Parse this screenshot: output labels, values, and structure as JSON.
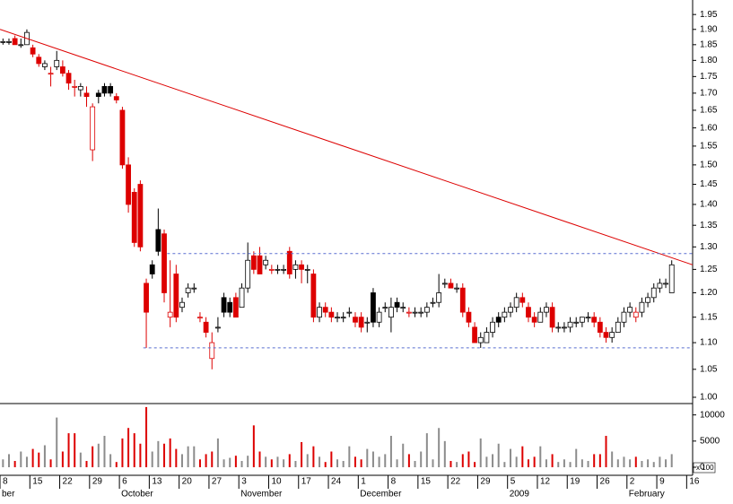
{
  "chart_data": {
    "type": "candlestick",
    "categories": [
      "8",
      null,
      null,
      null,
      null,
      "15",
      null,
      null,
      null,
      null,
      "22",
      null,
      null,
      null,
      null,
      "29",
      null,
      null,
      null,
      null,
      "6",
      null,
      null,
      null,
      null,
      "13",
      null,
      null,
      null,
      null,
      "20",
      null,
      null,
      null,
      null,
      "27",
      null,
      null,
      null,
      null,
      "3",
      null,
      null,
      null,
      null,
      "10",
      null,
      null,
      null,
      null,
      "17",
      null,
      null,
      null,
      null,
      "24",
      null,
      null,
      null,
      null,
      "1",
      null,
      null,
      null,
      null,
      "8",
      null,
      null,
      null,
      null,
      "15",
      null,
      null,
      null,
      null,
      "22",
      null,
      null,
      null,
      null,
      "29",
      null,
      null,
      null,
      null,
      "5",
      null,
      null,
      null,
      null,
      "12",
      null,
      null,
      null,
      null,
      "19",
      null,
      null,
      null,
      null,
      "26",
      null,
      null,
      null,
      null,
      "2",
      null,
      null,
      null,
      null,
      "9",
      null,
      null,
      null,
      null,
      "16"
    ],
    "months": [
      "ber",
      null,
      null,
      null,
      null,
      null,
      null,
      null,
      null,
      null,
      null,
      null,
      null,
      null,
      null,
      null,
      null,
      null,
      null,
      null,
      "October",
      null,
      null,
      null,
      null,
      null,
      null,
      null,
      null,
      null,
      null,
      null,
      null,
      null,
      null,
      null,
      null,
      null,
      null,
      null,
      "November",
      null,
      null,
      null,
      null,
      null,
      null,
      null,
      null,
      null,
      null,
      null,
      null,
      null,
      null,
      null,
      null,
      null,
      null,
      null,
      "December",
      null,
      null,
      null,
      null,
      null,
      null,
      null,
      null,
      null,
      null,
      null,
      null,
      null,
      null,
      null,
      null,
      null,
      null,
      null,
      null,
      null,
      null,
      null,
      null,
      "2009",
      null,
      null,
      null,
      null,
      null,
      null,
      null,
      null,
      null,
      null,
      null,
      null,
      null,
      null,
      null,
      null,
      null,
      null,
      null,
      "February",
      null,
      null,
      null,
      null,
      null,
      null,
      null,
      null,
      null,
      null
    ],
    "ohlc": [
      [
        1.86,
        1.87,
        1.85,
        1.86
      ],
      [
        1.86,
        1.87,
        1.85,
        1.86
      ],
      [
        1.87,
        1.88,
        1.85,
        1.85
      ],
      [
        1.85,
        1.87,
        1.84,
        1.85
      ],
      [
        1.85,
        1.9,
        1.85,
        1.89
      ],
      [
        1.84,
        1.85,
        1.81,
        1.82
      ],
      [
        1.81,
        1.82,
        1.78,
        1.79
      ],
      [
        1.78,
        1.8,
        1.77,
        1.79
      ],
      [
        1.76,
        1.78,
        1.72,
        1.76
      ],
      [
        1.78,
        1.83,
        1.77,
        1.8
      ],
      [
        1.78,
        1.8,
        1.75,
        1.76
      ],
      [
        1.76,
        1.77,
        1.71,
        1.73
      ],
      [
        1.72,
        1.74,
        1.69,
        1.72
      ],
      [
        1.71,
        1.73,
        1.69,
        1.72
      ],
      [
        1.7,
        1.72,
        1.66,
        1.69
      ],
      [
        1.54,
        1.67,
        1.51,
        1.66
      ],
      [
        1.7,
        1.71,
        1.67,
        1.69
      ],
      [
        1.72,
        1.73,
        1.69,
        1.7
      ],
      [
        1.72,
        1.73,
        1.69,
        1.7
      ],
      [
        1.69,
        1.7,
        1.67,
        1.68
      ],
      [
        1.65,
        1.66,
        1.49,
        1.5
      ],
      [
        1.5,
        1.52,
        1.38,
        1.4
      ],
      [
        1.43,
        1.44,
        1.3,
        1.31
      ],
      [
        1.45,
        1.46,
        1.29,
        1.3
      ],
      [
        1.22,
        1.23,
        1.09,
        1.16
      ],
      [
        1.26,
        1.27,
        1.23,
        1.24
      ],
      [
        1.34,
        1.39,
        1.28,
        1.29
      ],
      [
        1.33,
        1.34,
        1.18,
        1.2
      ],
      [
        1.15,
        1.27,
        1.13,
        1.16
      ],
      [
        1.24,
        1.26,
        1.14,
        1.15
      ],
      [
        1.17,
        1.19,
        1.16,
        1.18
      ],
      [
        1.2,
        1.22,
        1.19,
        1.21
      ],
      [
        1.21,
        1.22,
        1.2,
        1.21
      ],
      [
        1.15,
        1.16,
        1.14,
        1.15
      ],
      [
        1.14,
        1.15,
        1.11,
        1.12
      ],
      [
        1.07,
        1.12,
        1.05,
        1.1
      ],
      [
        1.13,
        1.15,
        1.12,
        1.13
      ],
      [
        1.19,
        1.2,
        1.15,
        1.16
      ],
      [
        1.18,
        1.19,
        1.15,
        1.16
      ],
      [
        1.19,
        1.2,
        1.15,
        1.15
      ],
      [
        1.17,
        1.22,
        1.17,
        1.21
      ],
      [
        1.21,
        1.31,
        1.2,
        1.27
      ],
      [
        1.28,
        1.29,
        1.24,
        1.25
      ],
      [
        1.28,
        1.3,
        1.24,
        1.24
      ],
      [
        1.26,
        1.28,
        1.25,
        1.27
      ],
      [
        1.25,
        1.26,
        1.24,
        1.25
      ],
      [
        1.25,
        1.26,
        1.24,
        1.25
      ],
      [
        1.25,
        1.26,
        1.24,
        1.25
      ],
      [
        1.29,
        1.3,
        1.23,
        1.24
      ],
      [
        1.25,
        1.27,
        1.23,
        1.26
      ],
      [
        1.26,
        1.27,
        1.22,
        1.25
      ],
      [
        1.25,
        1.26,
        1.22,
        1.25
      ],
      [
        1.24,
        1.25,
        1.14,
        1.15
      ],
      [
        1.15,
        1.18,
        1.14,
        1.17
      ],
      [
        1.17,
        1.18,
        1.15,
        1.16
      ],
      [
        1.16,
        1.17,
        1.14,
        1.15
      ],
      [
        1.15,
        1.16,
        1.14,
        1.15
      ],
      [
        1.15,
        1.16,
        1.14,
        1.15
      ],
      [
        1.16,
        1.17,
        1.15,
        1.16
      ],
      [
        1.15,
        1.16,
        1.13,
        1.14
      ],
      [
        1.15,
        1.16,
        1.12,
        1.13
      ],
      [
        1.14,
        1.15,
        1.12,
        1.14
      ],
      [
        1.2,
        1.21,
        1.13,
        1.14
      ],
      [
        1.14,
        1.17,
        1.13,
        1.16
      ],
      [
        1.17,
        1.18,
        1.16,
        1.17
      ],
      [
        1.15,
        1.19,
        1.12,
        1.17
      ],
      [
        1.18,
        1.19,
        1.16,
        1.17
      ],
      [
        1.17,
        1.18,
        1.16,
        1.17
      ],
      [
        1.16,
        1.17,
        1.15,
        1.16
      ],
      [
        1.16,
        1.17,
        1.15,
        1.16
      ],
      [
        1.16,
        1.17,
        1.15,
        1.16
      ],
      [
        1.16,
        1.18,
        1.15,
        1.17
      ],
      [
        1.18,
        1.19,
        1.17,
        1.18
      ],
      [
        1.18,
        1.24,
        1.17,
        1.2
      ],
      [
        1.22,
        1.23,
        1.21,
        1.22
      ],
      [
        1.22,
        1.23,
        1.21,
        1.21
      ],
      [
        1.21,
        1.22,
        1.2,
        1.21
      ],
      [
        1.21,
        1.22,
        1.15,
        1.16
      ],
      [
        1.16,
        1.17,
        1.13,
        1.14
      ],
      [
        1.13,
        1.14,
        1.1,
        1.1
      ],
      [
        1.1,
        1.12,
        1.09,
        1.11
      ],
      [
        1.1,
        1.13,
        1.1,
        1.12
      ],
      [
        1.12,
        1.15,
        1.11,
        1.14
      ],
      [
        1.15,
        1.16,
        1.13,
        1.14
      ],
      [
        1.15,
        1.17,
        1.14,
        1.16
      ],
      [
        1.16,
        1.18,
        1.15,
        1.17
      ],
      [
        1.17,
        1.2,
        1.16,
        1.19
      ],
      [
        1.19,
        1.2,
        1.17,
        1.18
      ],
      [
        1.17,
        1.18,
        1.14,
        1.15
      ],
      [
        1.15,
        1.16,
        1.13,
        1.14
      ],
      [
        1.14,
        1.17,
        1.14,
        1.16
      ],
      [
        1.16,
        1.18,
        1.15,
        1.17
      ],
      [
        1.17,
        1.18,
        1.12,
        1.13
      ],
      [
        1.13,
        1.14,
        1.12,
        1.13
      ],
      [
        1.13,
        1.14,
        1.12,
        1.13
      ],
      [
        1.13,
        1.15,
        1.12,
        1.14
      ],
      [
        1.14,
        1.15,
        1.13,
        1.14
      ],
      [
        1.14,
        1.15,
        1.13,
        1.15
      ],
      [
        1.15,
        1.16,
        1.14,
        1.15
      ],
      [
        1.15,
        1.16,
        1.13,
        1.14
      ],
      [
        1.14,
        1.15,
        1.11,
        1.12
      ],
      [
        1.12,
        1.13,
        1.1,
        1.11
      ],
      [
        1.11,
        1.13,
        1.1,
        1.12
      ],
      [
        1.12,
        1.15,
        1.12,
        1.14
      ],
      [
        1.14,
        1.17,
        1.13,
        1.16
      ],
      [
        1.16,
        1.18,
        1.15,
        1.17
      ],
      [
        1.15,
        1.17,
        1.14,
        1.16
      ],
      [
        1.16,
        1.19,
        1.15,
        1.18
      ],
      [
        1.18,
        1.2,
        1.17,
        1.19
      ],
      [
        1.19,
        1.22,
        1.18,
        1.21
      ],
      [
        1.21,
        1.23,
        1.2,
        1.22
      ],
      [
        1.22,
        1.23,
        1.21,
        1.22
      ],
      [
        1.2,
        1.27,
        1.2,
        1.26
      ],
      null,
      null,
      null
    ],
    "volume": [
      1500,
      2500,
      1200,
      3000,
      2000,
      3500,
      2800,
      4200,
      1500,
      9500,
      3000,
      6500,
      6500,
      2800,
      1200,
      4000,
      4500,
      6000,
      2500,
      1000,
      5500,
      7500,
      6500,
      4500,
      11500,
      3000,
      5000,
      4500,
      5500,
      3500,
      2500,
      4000,
      4000,
      1500,
      2500,
      3000,
      5500,
      1500,
      1800,
      2200,
      1200,
      2200,
      8000,
      3000,
      2000,
      1500,
      2000,
      1500,
      2500,
      1200,
      4800,
      2500,
      4000,
      2000,
      1000,
      3000,
      1500,
      1200,
      4000,
      2000,
      1500,
      3500,
      3000,
      2000,
      2500,
      6000,
      1500,
      4500,
      2500,
      1200,
      3000,
      6500,
      1500,
      7500,
      5000,
      1200,
      1000,
      2500,
      3000,
      1000,
      5500,
      2000,
      2500,
      4500,
      1000,
      3500,
      2000,
      4000,
      1500,
      2000,
      4000,
      1500,
      2500,
      1000,
      1500,
      1000,
      3500,
      1500,
      1200,
      2500,
      2500,
      6000,
      3000,
      1500,
      2000,
      1500,
      2000,
      1200,
      1500,
      1000,
      2000,
      1500,
      2500,
      null,
      null,
      null
    ],
    "ylim": [
      1.0,
      2.0
    ],
    "log_y": true,
    "yticks": [
      {
        "value": 1.0,
        "label": "1.00"
      },
      1.05,
      {
        "value": 1.1,
        "label": "1.10"
      },
      1.15,
      {
        "value": 1.2,
        "label": "1.20"
      },
      1.25,
      {
        "value": 1.3,
        "label": "1.30"
      },
      1.35,
      {
        "value": 1.4,
        "label": "1.40"
      },
      1.45,
      {
        "value": 1.5,
        "label": "1.50"
      },
      1.55,
      {
        "value": 1.6,
        "label": "1.60"
      },
      1.65,
      {
        "value": 1.7,
        "label": "1.70"
      },
      1.75,
      {
        "value": 1.8,
        "label": "1.80"
      },
      1.85,
      {
        "value": 1.9,
        "label": "1.90"
      },
      1.95
    ],
    "volume_ylim": [
      0,
      12000
    ],
    "volume_yticks": [
      0,
      5000,
      10000
    ],
    "volume_unit": "x 100",
    "up_color": "#000000",
    "down_color": "#dd0000",
    "volume_color": "#8c8c8c",
    "volume_down_color": "#dd0000",
    "lines": [
      {
        "color": "#dd0000",
        "dashed": false,
        "from": [
          0,
          1.9
        ],
        "to": [
          116,
          1.26
        ]
      },
      {
        "color": "#5a6fd0",
        "dashed": true,
        "from": [
          28,
          1.285
        ],
        "to": [
          116,
          1.285
        ]
      },
      {
        "color": "#5a6fd0",
        "dashed": true,
        "from": [
          24,
          1.09
        ],
        "to": [
          116,
          1.09
        ]
      }
    ]
  }
}
